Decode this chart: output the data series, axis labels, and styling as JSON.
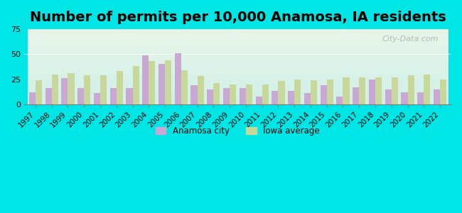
{
  "title": "Number of permits per 10,000 Anamosa, IA residents",
  "years": [
    1997,
    1998,
    1999,
    2000,
    2001,
    2002,
    2003,
    2004,
    2005,
    2006,
    2007,
    2008,
    2009,
    2010,
    2011,
    2012,
    2013,
    2014,
    2015,
    2016,
    2017,
    2018,
    2019,
    2020,
    2021,
    2022
  ],
  "anamosa": [
    12,
    16,
    26,
    16,
    11,
    16,
    16,
    49,
    40,
    51,
    19,
    15,
    16,
    16,
    8,
    13,
    13,
    11,
    19,
    8,
    17,
    25,
    15,
    12,
    12,
    15
  ],
  "iowa_avg": [
    24,
    30,
    31,
    29,
    29,
    33,
    38,
    43,
    44,
    34,
    28,
    21,
    20,
    20,
    20,
    23,
    25,
    24,
    25,
    27,
    27,
    27,
    27,
    29,
    30,
    25
  ],
  "anamosa_color": "#c9a8d4",
  "iowa_color": "#c8d89a",
  "background_color": "#00e5e5",
  "plot_bg_gradient_top": "#e8f5e9",
  "plot_bg_gradient_bottom": "#d0f0e8",
  "ylim": [
    0,
    75
  ],
  "yticks": [
    0,
    25,
    50,
    75
  ],
  "bar_width": 0.4,
  "legend_anamosa": "Anamosa city",
  "legend_iowa": "Iowa average",
  "title_fontsize": 14,
  "watermark": "City-Data.com"
}
